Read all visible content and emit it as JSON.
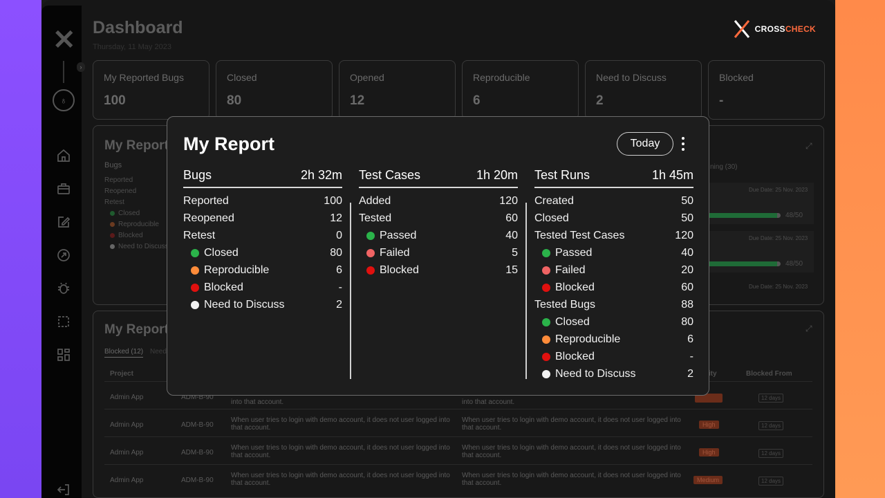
{
  "dashboard": {
    "title": "Dashboard",
    "date": "Thursday, 11 May 2023",
    "brand": {
      "part1": "CROSS",
      "part2": "CHECK"
    },
    "stats": [
      {
        "label": "My Reported Bugs",
        "value": "100"
      },
      {
        "label": "Closed",
        "value": "80"
      },
      {
        "label": "Opened",
        "value": "12"
      },
      {
        "label": "Reproducible",
        "value": "6"
      },
      {
        "label": "Need to Discuss",
        "value": "2"
      },
      {
        "label": "Blocked",
        "value": "-"
      }
    ],
    "report_panel": {
      "title": "My Report",
      "subhead": "Bugs",
      "items": [
        "Reported",
        "Reopened",
        "Retest"
      ],
      "sub_items": [
        "Closed",
        "Reproducible",
        "Blocked",
        "Need to Discuss"
      ],
      "running_label": "ning (30)",
      "due1": "Due Date: 25 Nov. 2023",
      "progress1": "48/50",
      "due2": "Due Date: 25 Nov. 2023",
      "progress2": "48/50",
      "due3": "Due Date: 25 Nov. 2023"
    },
    "report_panel2": {
      "title": "My Report",
      "tab_active": "Blocked (12)",
      "tab_next": "Need",
      "col_project": "Project",
      "col_priority": "rity",
      "col_blocked_from": "Blocked From",
      "rows": [
        {
          "project": "Admin App",
          "id": "ADM-B-90",
          "desc": "into that account.",
          "desc2": "into that account.",
          "priority": "",
          "days": "12 days"
        },
        {
          "project": "Admin App",
          "id": "ADM-B-90",
          "desc": "When user tries to login with demo account, it does not user logged into that account.",
          "desc2": "When user tries to login with demo account, it does not user logged into that account.",
          "priority": "High",
          "days": "12 days"
        },
        {
          "project": "Admin App",
          "id": "ADM-B-90",
          "desc": "When user tries to login with demo account, it does not user logged into that account.",
          "desc2": "When user tries to login with demo account, it does not user logged into that account.",
          "priority": "High",
          "days": "12 days"
        },
        {
          "project": "Admin App",
          "id": "ADM-B-90",
          "desc": "When user tries to login with demo account, it does not user logged into that account.",
          "desc2": "When user tries to login with demo account, it does not user logged into that account.",
          "priority": "Medium",
          "days": "12 days"
        }
      ]
    }
  },
  "modal": {
    "title": "My Report",
    "period_button": "Today",
    "colors": {
      "green": "#2bb34a",
      "orange": "#ff8c3a",
      "red": "#e0100e",
      "white": "#f2f2f2",
      "pink": "#f06464"
    },
    "bugs": {
      "title": "Bugs",
      "time": "2h 32m",
      "rows": [
        {
          "label": "Reported",
          "value": "100"
        },
        {
          "label": "Reopened",
          "value": "12"
        },
        {
          "label": "Retest",
          "value": "0"
        }
      ],
      "sub": [
        {
          "label": "Closed",
          "value": "80",
          "dot": "green"
        },
        {
          "label": "Reproducible",
          "value": "6",
          "dot": "orange"
        },
        {
          "label": "Blocked",
          "value": "-",
          "dot": "red"
        },
        {
          "label": "Need to Discuss",
          "value": "2",
          "dot": "white"
        }
      ]
    },
    "test_cases": {
      "title": "Test Cases",
      "time": "1h 20m",
      "rows": [
        {
          "label": "Added",
          "value": "120"
        },
        {
          "label": "Tested",
          "value": "60"
        }
      ],
      "sub": [
        {
          "label": "Passed",
          "value": "40",
          "dot": "green"
        },
        {
          "label": "Failed",
          "value": "5",
          "dot": "pink"
        },
        {
          "label": "Blocked",
          "value": "15",
          "dot": "red"
        }
      ]
    },
    "test_runs": {
      "title": "Test Runs",
      "time": "1h 45m",
      "rows": [
        {
          "label": "Created",
          "value": "50"
        },
        {
          "label": "Closed",
          "value": "50"
        },
        {
          "label": "Tested Test Cases",
          "value": "120"
        }
      ],
      "sub": [
        {
          "label": "Passed",
          "value": "40",
          "dot": "green"
        },
        {
          "label": "Failed",
          "value": "20",
          "dot": "pink"
        },
        {
          "label": "Blocked",
          "value": "60",
          "dot": "red"
        }
      ],
      "rows2": [
        {
          "label": "Tested Bugs",
          "value": "88"
        }
      ],
      "sub2": [
        {
          "label": "Closed",
          "value": "80",
          "dot": "green"
        },
        {
          "label": "Reproducible",
          "value": "6",
          "dot": "orange"
        },
        {
          "label": "Blocked",
          "value": "-",
          "dot": "red"
        },
        {
          "label": "Need to Discuss",
          "value": "2",
          "dot": "white"
        }
      ]
    }
  }
}
